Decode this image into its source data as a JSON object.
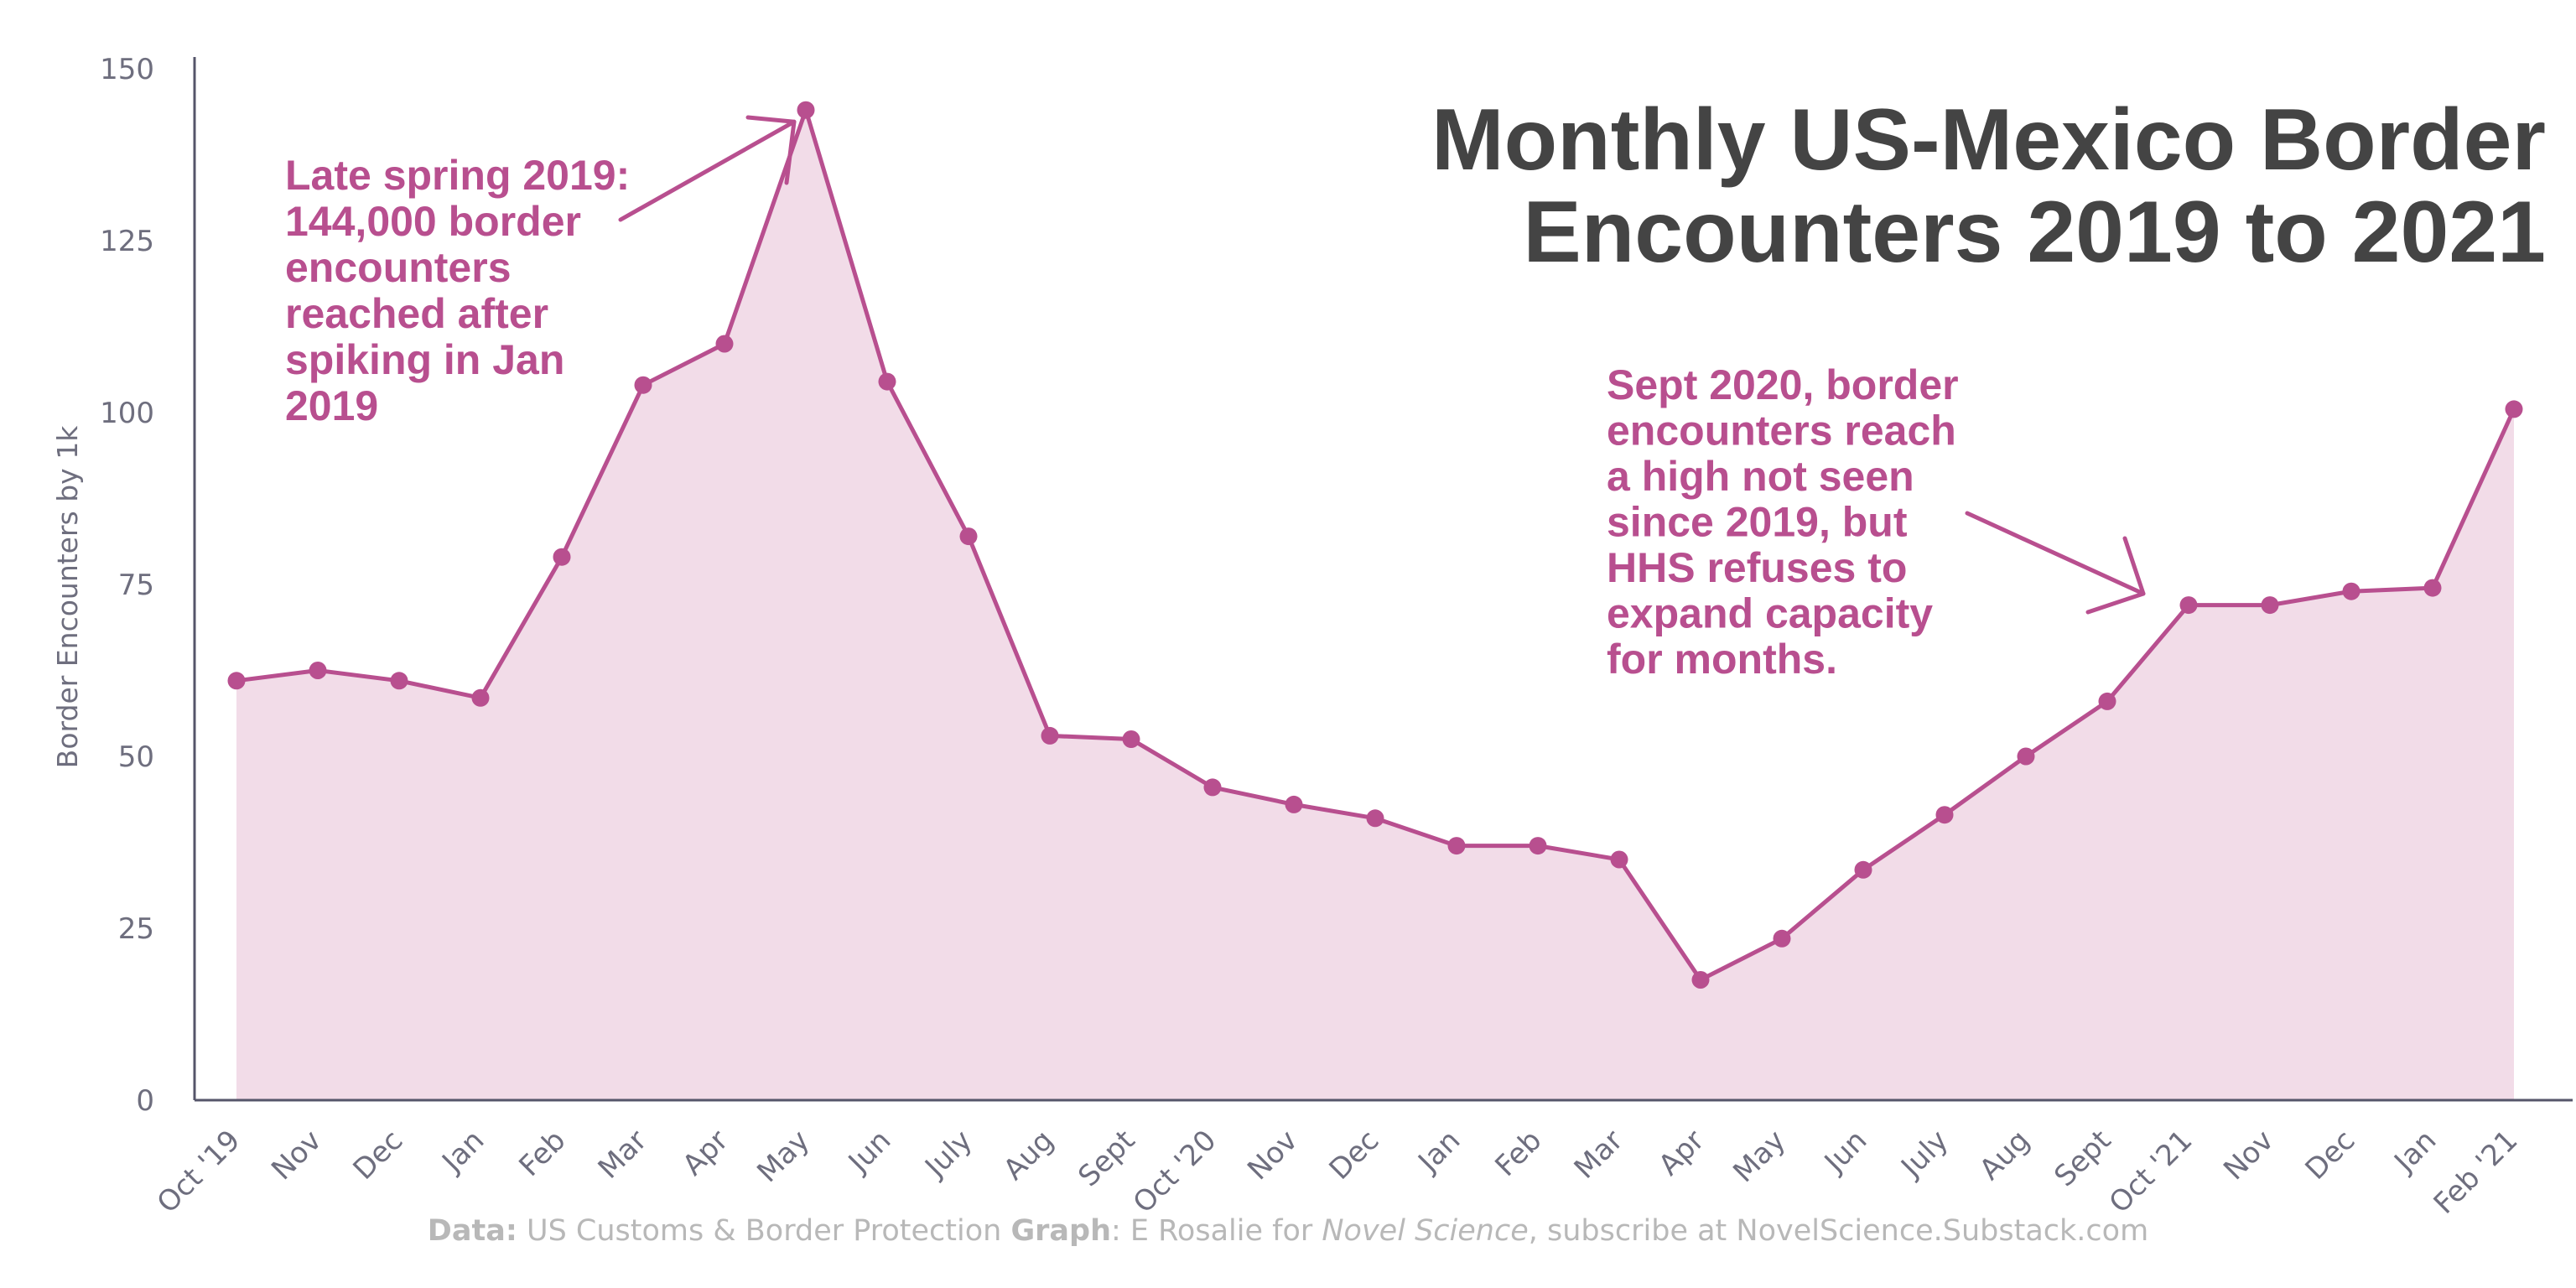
{
  "chart_data": {
    "type": "area",
    "title": [
      "Monthly US-Mexico Border",
      "Encounters 2019 to 2021"
    ],
    "ylabel": "Border Encounters by 1k",
    "xlabel": "",
    "ylim": [
      0,
      150
    ],
    "yticks": [
      0,
      25,
      50,
      75,
      100,
      125,
      150
    ],
    "grid": false,
    "colors": {
      "line": "#b84f8f",
      "fill": "#f2dce8",
      "axis": "#55556a",
      "title": "#444444",
      "annotation": "#b84f8f"
    },
    "categories": [
      "Oct '19",
      "Nov",
      "Dec",
      "Jan",
      "Feb",
      "Mar",
      "Apr",
      "May",
      "Jun",
      "July",
      "Aug",
      "Sept",
      "Oct '20",
      "Nov",
      "Dec",
      "Jan",
      "Feb",
      "Mar",
      "Apr",
      "May",
      "Jun",
      "July",
      "Aug",
      "Sept",
      "Oct '21",
      "Nov",
      "Dec",
      "Jan",
      "Feb '21"
    ],
    "values": [
      61,
      62.5,
      61,
      58.5,
      79,
      104,
      110,
      144,
      104.5,
      82,
      53,
      52.5,
      45.5,
      43,
      41,
      37,
      37,
      35,
      17.5,
      23.5,
      33.5,
      41.5,
      50,
      58,
      72,
      72,
      74,
      74.5,
      100.5
    ],
    "annotations": [
      {
        "lines": [
          "Late spring 2019:",
          "144,000 border",
          "encounters",
          "reached after",
          "spiking in Jan",
          "2019"
        ]
      },
      {
        "lines": [
          "Sept 2020, border",
          "encounters reach",
          "a high not seen",
          "since 2019, but",
          "HHS refuses to",
          "expand capacity",
          "for months."
        ]
      }
    ]
  },
  "source": {
    "data_label": "Data:",
    "data_text": " US Customs & Border Protection  ",
    "graph_label": "Graph",
    "graph_text": ": E Rosalie for ",
    "publication": "Novel Science",
    "tail_text": ", subscribe at NovelScience.Substack.com"
  }
}
